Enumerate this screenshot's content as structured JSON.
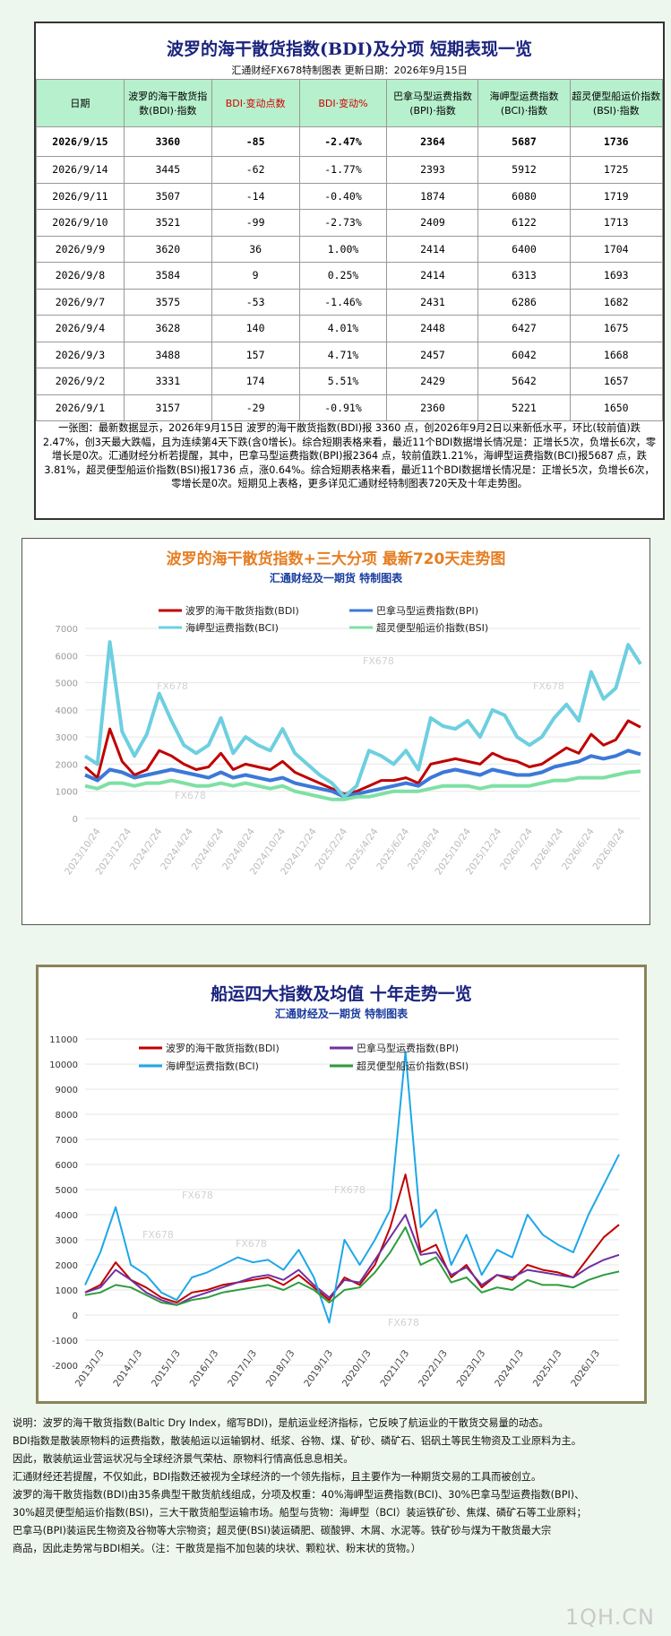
{
  "table": {
    "title": "波罗的海干散货指数(BDI)及分项 短期表现一览",
    "subtitle": "汇通财经FX678特制图表      更新日期：2026年9月15日",
    "headers": [
      "日期",
      "波罗的海干散货指数(BDI)·指数",
      "BDI·变动点数",
      "BDI·变动%",
      "巴拿马型运费指数(BPI)·指数",
      "海岬型运费指数(BCI)·指数",
      "超灵便型船运价指数(BSI)·指数"
    ],
    "rows": [
      [
        "2026/9/15",
        "3360",
        "-85",
        "-2.47%",
        "2364",
        "5687",
        "1736"
      ],
      [
        "2026/9/14",
        "3445",
        "-62",
        "-1.77%",
        "2393",
        "5912",
        "1725"
      ],
      [
        "2026/9/11",
        "3507",
        "-14",
        "-0.40%",
        "1874",
        "6080",
        "1719"
      ],
      [
        "2026/9/10",
        "3521",
        "-99",
        "-2.73%",
        "2409",
        "6122",
        "1713"
      ],
      [
        "2026/9/9",
        "3620",
        "36",
        "1.00%",
        "2414",
        "6400",
        "1704"
      ],
      [
        "2026/9/8",
        "3584",
        "9",
        "0.25%",
        "2414",
        "6313",
        "1693"
      ],
      [
        "2026/9/7",
        "3575",
        "-53",
        "-1.46%",
        "2431",
        "6286",
        "1682"
      ],
      [
        "2026/9/4",
        "3628",
        "140",
        "4.01%",
        "2448",
        "6427",
        "1675"
      ],
      [
        "2026/9/3",
        "3488",
        "157",
        "4.71%",
        "2457",
        "6042",
        "1668"
      ],
      [
        "2026/9/2",
        "3331",
        "174",
        "5.51%",
        "2429",
        "5642",
        "1657"
      ],
      [
        "2026/9/1",
        "3157",
        "-29",
        "-0.91%",
        "2360",
        "5221",
        "1650"
      ]
    ],
    "description": "一张图：最新数据显示，2026年9月15日 波罗的海干散货指数(BDI)报 3360 点，创2026年9月2日以来新低水平，环比(较前值)跌2.47%，创3天最大跌幅，且为连续第4天下跌(含0增长)。综合短期表格来看，最近11个BDI数据增长情况是：正增长5次，负增长6次，零增长是0次。汇通财经分析若提醒，其中，巴拿马型运费指数(BPI)报2364 点，较前值跌1.21%，海岬型运费指数(BCI)报5687 点，跌3.81%，超灵便型船运价指数(BSI)报1736 点，涨0.64%。综合短期表格来看，最近11个BDI数据增长情况是：正增长5次，负增长6次，零增长是0次。短期见上表格，更多详见汇通财经特制图表720天及十年走势图。"
  },
  "chart_data": [
    {
      "type": "line",
      "title": "波罗的海干散货指数+三大分项  最新720天走势图",
      "subtitle": "汇通财经及一期货  特制图表",
      "ylim": [
        0,
        7000
      ],
      "yticks": [
        0,
        1000,
        2000,
        3000,
        4000,
        5000,
        6000,
        7000
      ],
      "x_labels": [
        "2023/10/24",
        "2023/12/24",
        "2024/2/24",
        "2024/4/24",
        "2024/6/24",
        "2024/8/24",
        "2024/10/24",
        "2024/12/24",
        "2025/2/24",
        "2025/4/24",
        "2025/6/24",
        "2025/8/24",
        "2025/10/24",
        "2025/12/24",
        "2026/2/24",
        "2026/4/24",
        "2026/6/24",
        "2026/8/24"
      ],
      "legend": "top",
      "series": [
        {
          "name": "波罗的海干散货指数(BDI)",
          "color": "#c00000",
          "values": [
            1900,
            1500,
            3300,
            2100,
            1600,
            1800,
            2500,
            2300,
            2000,
            1800,
            1900,
            2400,
            1800,
            2000,
            1900,
            1800,
            2100,
            1700,
            1500,
            1300,
            1100,
            900,
            1000,
            1200,
            1400,
            1400,
            1500,
            1300,
            2000,
            2100,
            2200,
            2100,
            2000,
            2400,
            2200,
            2100,
            1900,
            2000,
            2300,
            2600,
            2400,
            3100,
            2700,
            2900,
            3600,
            3360
          ]
        },
        {
          "name": "巴拿马型运费指数(BPI)",
          "color": "#3c78d8",
          "values": [
            1600,
            1400,
            1800,
            1700,
            1500,
            1600,
            1700,
            1800,
            1700,
            1600,
            1500,
            1700,
            1500,
            1600,
            1500,
            1400,
            1500,
            1300,
            1200,
            1100,
            1000,
            800,
            900,
            1000,
            1100,
            1200,
            1300,
            1200,
            1500,
            1700,
            1800,
            1700,
            1600,
            1800,
            1700,
            1600,
            1600,
            1700,
            1900,
            2000,
            2100,
            2300,
            2200,
            2300,
            2500,
            2364
          ]
        },
        {
          "name": "海岬型运费指数(BCI)",
          "color": "#6dcfe0",
          "values": [
            2300,
            2000,
            6500,
            3200,
            2300,
            3100,
            4600,
            3600,
            2700,
            2400,
            2700,
            3700,
            2400,
            3000,
            2700,
            2500,
            3300,
            2400,
            2000,
            1600,
            1300,
            800,
            1200,
            2500,
            2300,
            2000,
            2500,
            1800,
            3700,
            3400,
            3300,
            3600,
            3000,
            4000,
            3800,
            3000,
            2700,
            3000,
            3700,
            4200,
            3600,
            5400,
            4400,
            4800,
            6400,
            5687
          ]
        },
        {
          "name": "超灵便型船运价指数(BSI)",
          "color": "#7ee0a4",
          "values": [
            1200,
            1100,
            1300,
            1300,
            1200,
            1300,
            1300,
            1400,
            1300,
            1200,
            1200,
            1300,
            1200,
            1300,
            1200,
            1100,
            1200,
            1000,
            900,
            800,
            700,
            700,
            800,
            800,
            900,
            1000,
            1000,
            1000,
            1100,
            1200,
            1200,
            1200,
            1100,
            1200,
            1200,
            1200,
            1200,
            1300,
            1400,
            1400,
            1500,
            1500,
            1500,
            1600,
            1700,
            1736
          ]
        }
      ]
    },
    {
      "type": "line",
      "title": "船运四大指数及均值 十年走势一览",
      "subtitle": "汇通财经及一期货 特制图表",
      "ylim": [
        -2000,
        11000
      ],
      "yticks": [
        -2000,
        -1000,
        0,
        1000,
        2000,
        3000,
        4000,
        5000,
        6000,
        7000,
        8000,
        9000,
        10000,
        11000
      ],
      "x_labels": [
        "2013/1/3",
        "2014/1/3",
        "2015/1/3",
        "2016/1/3",
        "2017/1/3",
        "2018/1/3",
        "2019/1/3",
        "2020/1/3",
        "2021/1/3",
        "2022/1/3",
        "2023/1/3",
        "2024/1/3",
        "2025/1/3",
        "2026/1/3"
      ],
      "legend": "top",
      "series": [
        {
          "name": "波罗的海干散货指数(BDI)",
          "color": "#c00000",
          "values": [
            900,
            1200,
            2100,
            1400,
            1100,
            700,
            500,
            900,
            1000,
            1200,
            1300,
            1400,
            1500,
            1200,
            1600,
            1100,
            600,
            1500,
            1200,
            2000,
            3500,
            5600,
            2500,
            2800,
            1500,
            2000,
            1100,
            1600,
            1400,
            2000,
            1800,
            1700,
            1500,
            2300,
            3100,
            3600
          ]
        },
        {
          "name": "巴拿马型运费指数(BPI)",
          "color": "#7030a0",
          "values": [
            900,
            1100,
            1800,
            1400,
            900,
            600,
            400,
            700,
            900,
            1100,
            1300,
            1500,
            1600,
            1400,
            1800,
            1200,
            700,
            1400,
            1300,
            2200,
            3100,
            4000,
            2400,
            2500,
            1600,
            1900,
            1200,
            1600,
            1500,
            1800,
            1700,
            1600,
            1500,
            1900,
            2200,
            2400
          ]
        },
        {
          "name": "海岬型运费指数(BCI)",
          "color": "#1ea7e8",
          "values": [
            1200,
            2500,
            4300,
            2000,
            1600,
            900,
            600,
            1500,
            1700,
            2000,
            2300,
            2100,
            2200,
            1800,
            2600,
            1500,
            -300,
            3000,
            2000,
            3000,
            4200,
            10500,
            3500,
            4200,
            2000,
            3200,
            1600,
            2600,
            2300,
            4000,
            3200,
            2800,
            2500,
            4000,
            5200,
            6400
          ]
        },
        {
          "name": "超灵便型船运价指数(BSI)",
          "color": "#2e9c3e",
          "values": [
            800,
            900,
            1200,
            1100,
            800,
            500,
            400,
            600,
            700,
            900,
            1000,
            1100,
            1200,
            1000,
            1300,
            1000,
            500,
            1000,
            1100,
            1700,
            2500,
            3500,
            2000,
            2300,
            1300,
            1500,
            900,
            1100,
            1000,
            1400,
            1200,
            1200,
            1100,
            1400,
            1600,
            1736
          ]
        }
      ]
    }
  ],
  "notes": [
    "说明：波罗的海干散货指数(Baltic Dry Index，缩写BDI)，是航运业经济指标，它反映了航运业的干散货交易量的动态。",
    "BDI指数是散装原物料的运费指数，散装船运以运输钢材、纸浆、谷物、煤、矿砂、磷矿石、铝矾土等民生物资及工业原料为主。",
    "因此，散装航运业营运状况与全球经济景气荣枯、原物料行情高低息息相关。",
    "汇通财经还若提醒，不仅如此，BDI指数还被视为全球经济的一个领先指标，且主要作为一种期货交易的工具而被创立。",
    "波罗的海干散货指数(BDI)由35条典型干散货航线组成，分项及权重：40%海岬型运费指数(BCI)、30%巴拿马型运费指数(BPI)、",
    "30%超灵便型船运价指数(BSI)，三大干散货船型运输市场。船型与货物：海岬型（BCI）装运铁矿砂、焦煤、磷矿石等工业原料；",
    "巴拿马(BPI)装运民生物资及谷物等大宗物资；超灵便(BSI)装运磷肥、碳酸钾、木屑、水泥等。铁矿砂与煤为干散货最大宗",
    "商品，因此走势常与BDI相关。（注：干散货是指不加包装的块状、颗粒状、粉末状的货物。）"
  ],
  "watermark": "FX678",
  "brand": "1QH.CN"
}
